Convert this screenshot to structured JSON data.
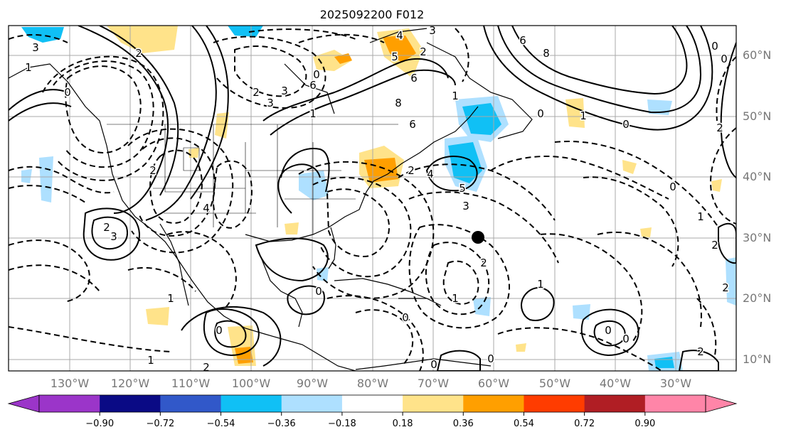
{
  "title": "2025092200 F012",
  "lat_labels": [
    "60°N",
    "50°N",
    "40°N",
    "30°N",
    "20°N",
    "10°N"
  ],
  "lon_labels": [
    "130°W",
    "120°W",
    "110°W",
    "100°W",
    "90°W",
    "80°W",
    "70°W",
    "60°W",
    "50°W",
    "40°W",
    "30°W"
  ],
  "colorbar": {
    "ticks": [
      "−0.90",
      "−0.72",
      "−0.54",
      "−0.36",
      "−0.18",
      "0.18",
      "0.36",
      "0.54",
      "0.72",
      "0.90"
    ],
    "under_color": "#9b35c9",
    "colors": [
      "#9b35c9",
      "#0a0a85",
      "#3158c9",
      "#10c0f5",
      "#aee0ff",
      "#ffffff",
      "#ffe38a",
      "#ff9f00",
      "#ff3c00",
      "#b01e24",
      "#ff85a8"
    ],
    "over_color": "#ff85a8"
  },
  "contour_labels": [
    "6",
    "8",
    "3",
    "2",
    "1",
    "0",
    "2",
    "4",
    "3",
    "6",
    "2",
    "3",
    "1",
    "0",
    "2",
    "4",
    "3",
    "5",
    "6",
    "8",
    "6",
    "4",
    "5",
    "3",
    "2",
    "1",
    "0",
    "1",
    "0",
    "2",
    "0",
    "0",
    "0",
    "1",
    "2",
    "0",
    "0",
    "1",
    "0",
    "1",
    "2",
    "0",
    "0",
    "2",
    "0",
    "1",
    "0",
    "2",
    "3",
    "2",
    "1",
    "2"
  ],
  "marker": {
    "label": "storm-center"
  }
}
